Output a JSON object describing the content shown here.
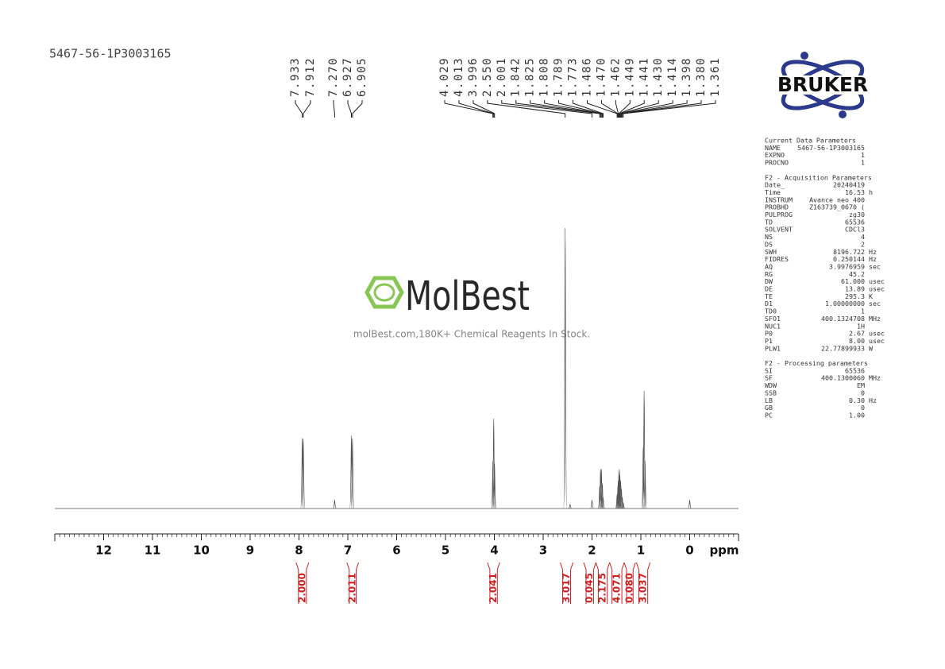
{
  "sample_id": "5467-56-1P3003165",
  "watermark": {
    "brand": "MolBest",
    "tagline": "molBest.com,180K+ Chemical Reagents In Stock."
  },
  "logo": "BRUKER",
  "chart_data": {
    "type": "nmr",
    "x_label": "ppm",
    "xlim": [
      13,
      -1
    ],
    "xticks": [
      12,
      11,
      10,
      9,
      8,
      7,
      6,
      5,
      4,
      3,
      2,
      1,
      0
    ],
    "color": "#555555",
    "peaks": {
      "x": [
        7.933,
        7.912,
        7.27,
        6.927,
        6.905,
        4.029,
        4.013,
        3.996,
        2.55,
        2.45,
        2.001,
        1.842,
        1.825,
        1.808,
        1.789,
        1.773,
        1.486,
        1.47,
        1.462,
        1.449,
        1.441,
        1.43,
        1.414,
        1.398,
        1.38,
        1.361,
        0.951,
        0.933,
        0.914,
        0
      ],
      "values": [
        25,
        25,
        3,
        26,
        25,
        17,
        32,
        16,
        100,
        1.5,
        3,
        8,
        14,
        14,
        9,
        4,
        5,
        8,
        10,
        13,
        14,
        12,
        10,
        7,
        4,
        2,
        22,
        42,
        17,
        3
      ]
    },
    "peak_labels": [
      7.933,
      7.912,
      {
        "value": 7.27,
        "label": "7.270"
      },
      6.927,
      6.905,
      4.029,
      4.013,
      3.996,
      {
        "value": 2.55,
        "label": "2.550"
      },
      2.001,
      1.842,
      1.825,
      1.808,
      1.789,
      1.773,
      1.486,
      {
        "value": 1.47,
        "label": "1.470"
      },
      1.462,
      1.449,
      1.441,
      {
        "value": 1.43,
        "label": "1.430"
      },
      1.414,
      1.398,
      {
        "value": 1.38,
        "label": "1.380"
      },
      1.361
    ],
    "integrals": [
      {
        "value": 2,
        "label": "2.000"
      },
      2.011,
      2.041,
      3.017,
      0.045,
      2.175,
      4.071,
      {
        "value": 0.08,
        "label": "0.080"
      },
      3.037
    ],
    "integral_ranges": [
      [
        8.06,
        7.8
      ],
      [
        7.02,
        6.78
      ],
      [
        4.14,
        3.89
      ],
      [
        2.65,
        2.39
      ],
      [
        2.17,
        1.92
      ],
      [
        1.92,
        1.64
      ],
      [
        1.64,
        1.34
      ],
      [
        1.34,
        1.11
      ],
      [
        1.09,
        0.81
      ]
    ],
    "integral_color": "#cc2222"
  },
  "parameters": {
    "sections": [
      {
        "title": "Current Data Parameters",
        "rows": [
          [
            "NAME",
            "5467-56-1P3003165"
          ],
          [
            "EXPNO",
            "1"
          ],
          [
            "PROCNO",
            "1"
          ]
        ]
      },
      {
        "title": "F2 - Acquisition Parameters",
        "rows": [
          [
            "Date_",
            "20240419"
          ],
          [
            "Time",
            "16.53",
            "h"
          ],
          [
            "INSTRUM",
            "Avance neo 400"
          ],
          [
            "PROBHD",
            "Z163739_0670 ("
          ],
          [
            "PULPROG",
            "zg30"
          ],
          [
            "TD",
            "65536"
          ],
          [
            "SOLVENT",
            "CDCl3"
          ],
          [
            "NS",
            "4"
          ],
          [
            "DS",
            "2"
          ],
          [
            "SWH",
            "8196.722",
            "Hz"
          ],
          [
            "FIDRES",
            "0.250144",
            "Hz"
          ],
          [
            "AQ",
            "3.9976959",
            "sec"
          ],
          [
            "RG",
            "45.2"
          ],
          [
            "DW",
            "61.000",
            "usec"
          ],
          [
            "DE",
            "13.89",
            "usec"
          ],
          [
            "TE",
            "295.3",
            "K"
          ],
          [
            "D1",
            "1.00000000",
            "sec"
          ],
          [
            "TD0",
            "1"
          ],
          [
            "SFO1",
            "400.1324708",
            "MHz"
          ],
          [
            "NUC1",
            "1H"
          ],
          [
            "P0",
            "2.67",
            "usec"
          ],
          [
            "P1",
            "8.00",
            "usec"
          ],
          [
            "PLW1",
            "22.77899933",
            "W"
          ]
        ]
      },
      {
        "title": "F2 - Processing parameters",
        "rows": [
          [
            "SI",
            "65536"
          ],
          [
            "SF",
            "400.1300060",
            "MHz"
          ],
          [
            "WDW",
            "EM"
          ],
          [
            "SSB",
            "0"
          ],
          [
            "LB",
            "0.30",
            "Hz"
          ],
          [
            "GB",
            "0"
          ],
          [
            "PC",
            "1.00"
          ]
        ]
      }
    ]
  }
}
